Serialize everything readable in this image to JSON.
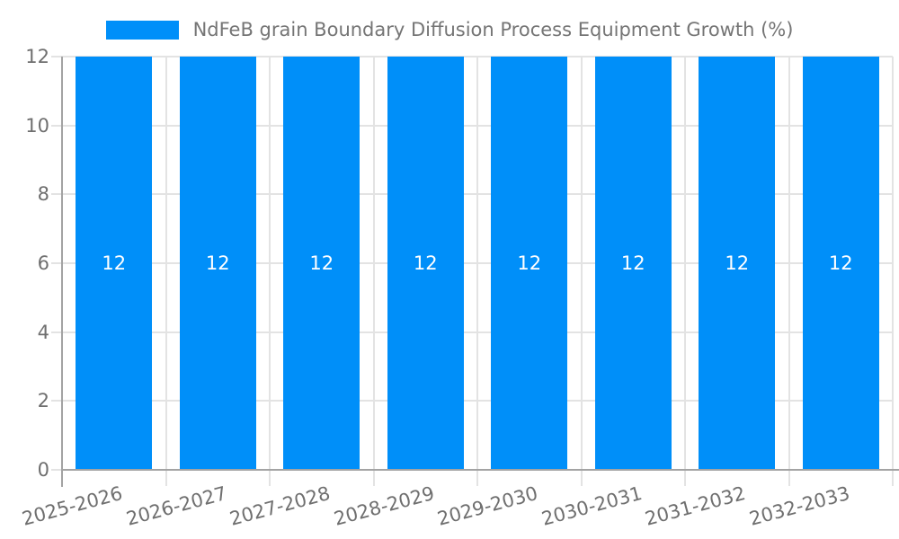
{
  "colors": {
    "bar": "#008ff9",
    "grid": "#e3e3e3",
    "axis": "#a3a3a3",
    "tick_text": "#6f6f6f",
    "title_text": "#757575",
    "bar_label_text": "#ffffff",
    "background": "#ffffff"
  },
  "legend": {
    "label": "NdFeB grain Boundary Diffusion Process Equipment Growth (%)",
    "position": "top-center",
    "swatch_shape": "rectangle"
  },
  "chart_data": {
    "type": "bar",
    "title": "NdFeB grain Boundary Diffusion Process Equipment Growth (%)",
    "categories": [
      "2025-2026",
      "2026-2027",
      "2027-2028",
      "2028-2029",
      "2029-2030",
      "2030-2031",
      "2031-2032",
      "2032-2033"
    ],
    "values": [
      12,
      12,
      12,
      12,
      12,
      12,
      12,
      12
    ],
    "bar_labels": [
      "12",
      "12",
      "12",
      "12",
      "12",
      "12",
      "12",
      "12"
    ],
    "xlabel": "",
    "ylabel": "",
    "ylim": [
      0,
      12
    ],
    "yticks": [
      0,
      2,
      4,
      6,
      8,
      10,
      12
    ],
    "grid": "horizontal and vertical, light gray",
    "legend_position": "top",
    "x_tick_rotation_deg": 15,
    "series": [
      {
        "name": "NdFeB grain Boundary Diffusion Process Equipment Growth (%)",
        "values": [
          12,
          12,
          12,
          12,
          12,
          12,
          12,
          12
        ]
      }
    ]
  }
}
